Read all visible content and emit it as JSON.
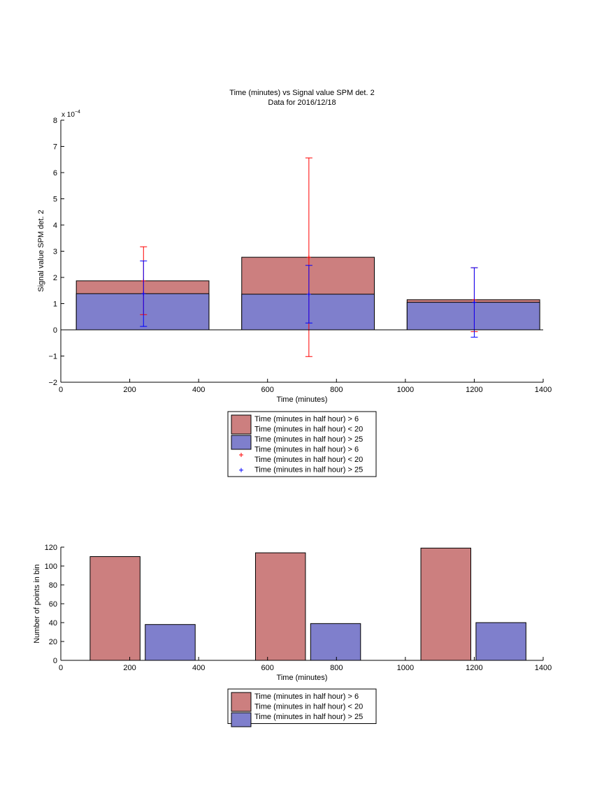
{
  "chart_data": [
    {
      "type": "bar",
      "title": "Time (minutes) vs Signal value SPM det. 2",
      "subtitle": "Data for 2016/12/18",
      "xlabel": "Time (minutes)",
      "ylabel": "Signal value SPM det. 2",
      "exponent_label": "x 10",
      "exponent_power": "−4",
      "xlim": [
        0,
        1400
      ],
      "ylim": [
        -2,
        8
      ],
      "x_ticks": [
        0,
        200,
        400,
        600,
        800,
        1000,
        1200,
        1400
      ],
      "y_ticks": [
        -2,
        -1,
        0,
        1,
        2,
        3,
        4,
        5,
        6,
        7,
        8
      ],
      "grid": false,
      "legend_placement": "below",
      "bar_ranges": [
        [
          45,
          430
        ],
        [
          525,
          910
        ],
        [
          1005,
          1390
        ]
      ],
      "series": [
        {
          "name": "Time (minutes in half hour) > 6\nTime (minutes in half hour) < 20",
          "color": "#cc7f7f",
          "values": [
            1.87,
            2.77,
            1.15
          ]
        },
        {
          "name": "Time (minutes in half hour) > 25",
          "color": "#7f7fcc",
          "values": [
            1.38,
            1.36,
            1.05
          ]
        }
      ],
      "error_bars": [
        {
          "name": "Time (minutes in half hour) > 6\nTime (minutes in half hour) < 20",
          "marker": "+",
          "color": "#ff0000",
          "points": [
            {
              "x": 240,
              "y": 1.87,
              "low": 0.58,
              "high": 3.17
            },
            {
              "x": 720,
              "y": 2.77,
              "low": -1.02,
              "high": 6.56
            },
            {
              "x": 1200,
              "y": 1.15,
              "low": -0.07,
              "high": 2.37
            }
          ]
        },
        {
          "name": "Time (minutes in half hour) > 25",
          "marker": "+",
          "color": "#0000ff",
          "points": [
            {
              "x": 240,
              "y": 1.38,
              "low": 0.13,
              "high": 2.63
            },
            {
              "x": 720,
              "y": 1.36,
              "low": 0.26,
              "high": 2.46
            },
            {
              "x": 1200,
              "y": 1.05,
              "low": -0.28,
              "high": 2.37
            }
          ]
        }
      ],
      "legend": [
        {
          "type": "patch",
          "color": "#cc7f7f",
          "lines": [
            "Time (minutes in half hour) > 6",
            "Time (minutes in half hour) < 20"
          ]
        },
        {
          "type": "patch",
          "color": "#7f7fcc",
          "lines": [
            "Time (minutes in half hour) > 25"
          ]
        },
        {
          "type": "marker",
          "color": "#ff0000",
          "lines": [
            "Time (minutes in half hour) > 6",
            "Time (minutes in half hour) < 20"
          ]
        },
        {
          "type": "marker",
          "color": "#0000ff",
          "lines": [
            "Time (minutes in half hour) > 25"
          ]
        }
      ]
    },
    {
      "type": "bar",
      "xlabel": "Time (minutes)",
      "ylabel": "Number of points in bin",
      "xlim": [
        0,
        1400
      ],
      "ylim": [
        0,
        120
      ],
      "x_ticks": [
        0,
        200,
        400,
        600,
        800,
        1000,
        1200,
        1400
      ],
      "y_ticks": [
        0,
        20,
        40,
        60,
        80,
        100,
        120
      ],
      "grid": false,
      "legend_placement": "below",
      "bars": [
        {
          "x0": 85,
          "x1": 230,
          "value": 110,
          "color": "#cc7f7f"
        },
        {
          "x0": 245,
          "x1": 390,
          "value": 38,
          "color": "#7f7fcc"
        },
        {
          "x0": 565,
          "x1": 710,
          "value": 114,
          "color": "#cc7f7f"
        },
        {
          "x0": 725,
          "x1": 870,
          "value": 39,
          "color": "#7f7fcc"
        },
        {
          "x0": 1045,
          "x1": 1190,
          "value": 119,
          "color": "#cc7f7f"
        },
        {
          "x0": 1205,
          "x1": 1350,
          "value": 40,
          "color": "#7f7fcc"
        }
      ],
      "legend": [
        {
          "type": "patch",
          "color": "#cc7f7f",
          "lines": [
            "Time (minutes in half hour) > 6",
            "Time (minutes in half hour) < 20"
          ]
        },
        {
          "type": "patch",
          "color": "#7f7fcc",
          "lines": [
            "Time (minutes in half hour) > 25"
          ]
        }
      ]
    }
  ]
}
